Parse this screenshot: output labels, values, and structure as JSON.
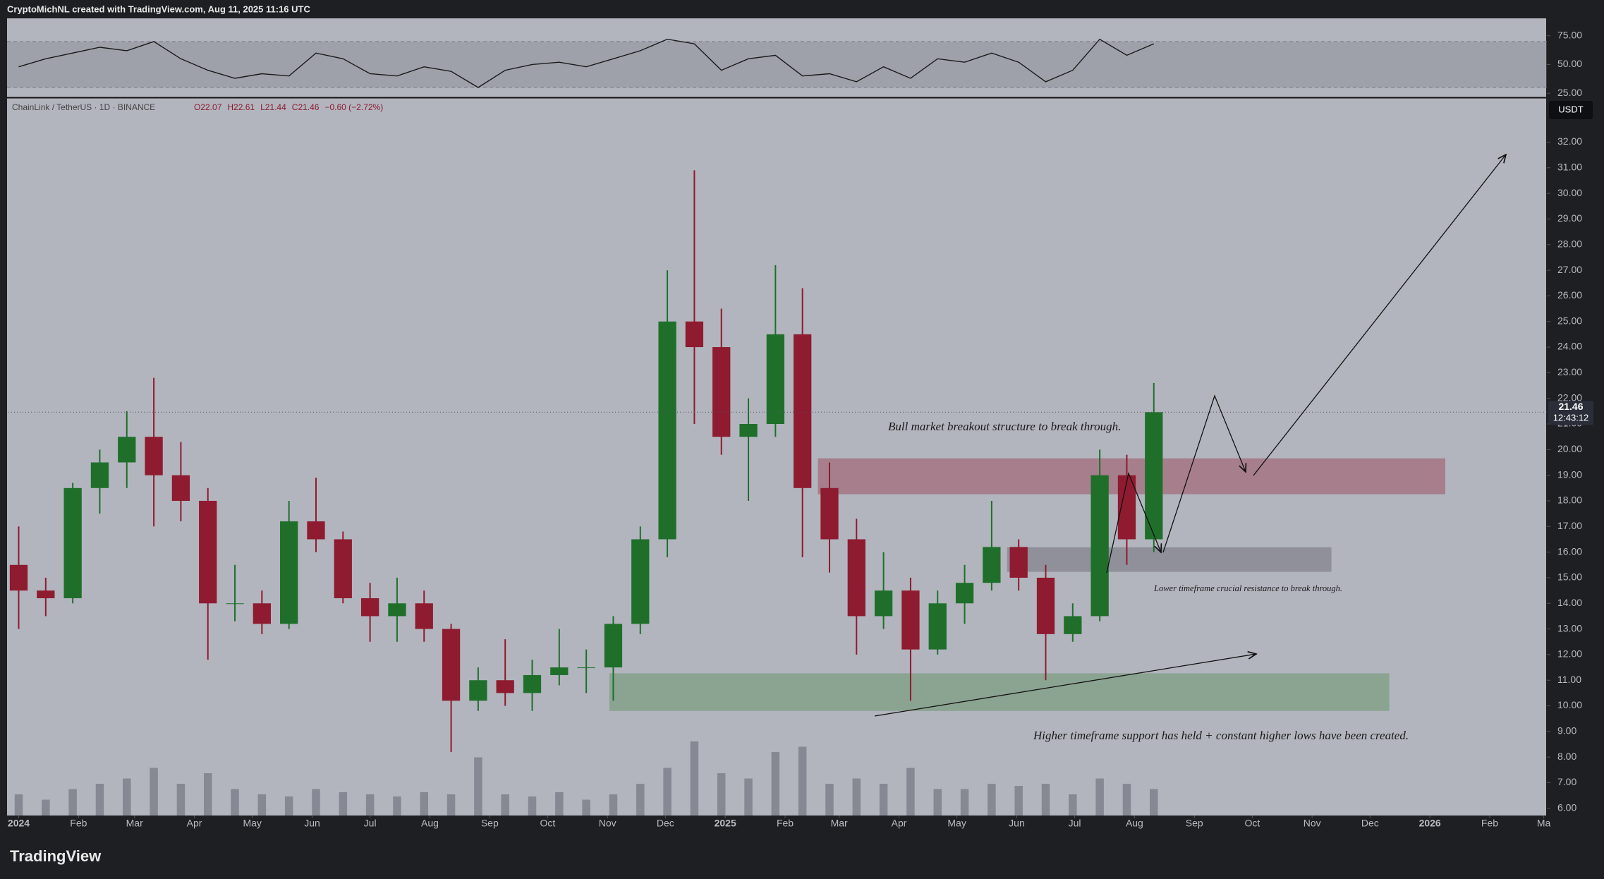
{
  "header": "CryptoMichNL created with TradingView.com, Aug 11, 2025 11:16 UTC",
  "footer": "TradingView",
  "chart_data": {
    "type": "candlestick",
    "legend": {
      "symbol": "ChainLink / TetherUS · 1D · BINANCE",
      "values": [
        "O22.07",
        "H22.61",
        "L21.44",
        "C21.46",
        "−0.60 (−2.72%)"
      ]
    },
    "currency": "USDT",
    "price_label": {
      "value": 21.46,
      "label": "21.46"
    },
    "countdown": "12:43:12",
    "x": [
      0,
      14,
      28,
      42,
      56,
      70,
      84,
      98,
      112,
      126,
      140,
      154,
      168,
      182,
      196,
      210,
      224,
      238,
      252,
      266,
      280,
      294,
      308,
      322,
      336,
      350,
      364,
      378,
      392,
      406,
      420,
      434,
      448,
      462,
      476,
      490,
      504,
      518,
      532,
      546,
      560,
      574,
      588
    ],
    "open": [
      15.5,
      14.5,
      14.2,
      18.5,
      19.5,
      20.5,
      19,
      18,
      14,
      14,
      13.2,
      17.2,
      16.5,
      14.2,
      13.5,
      14,
      13,
      10.2,
      11,
      10.5,
      11.2,
      11.5,
      11.5,
      13.2,
      16.5,
      25,
      24,
      20.5,
      21,
      24.5,
      18.5,
      16.5,
      13.5,
      14.5,
      12.2,
      14,
      14.8,
      16.2,
      15,
      12.8,
      13.5,
      19,
      16.5
    ],
    "high": [
      17,
      15,
      18.7,
      20,
      21.5,
      22.8,
      20.3,
      18.5,
      15.5,
      14.5,
      18,
      18.9,
      16.8,
      14.8,
      15,
      14.5,
      13.2,
      11.5,
      12.6,
      11.8,
      13,
      12.2,
      13.5,
      17,
      27,
      30.9,
      25.5,
      22,
      27.2,
      26.3,
      19.5,
      17.3,
      16,
      15,
      14.5,
      15.5,
      18,
      16.5,
      15.5,
      14,
      20,
      19.8,
      22.6
    ],
    "low": [
      13,
      13.5,
      14,
      17.5,
      18.5,
      17,
      17.2,
      11.8,
      13.3,
      12.8,
      13,
      16,
      14,
      12.5,
      12.5,
      12.5,
      8.2,
      9.8,
      10,
      9.8,
      10.8,
      10.5,
      10.2,
      12.8,
      15.8,
      21,
      19.8,
      18,
      20.5,
      15.8,
      15.2,
      12,
      13,
      10.2,
      12,
      13.2,
      14.5,
      14.5,
      11,
      12.5,
      13.3,
      15.5,
      16
    ],
    "close": [
      14.5,
      14.2,
      18.5,
      19.5,
      20.5,
      19,
      18,
      14,
      14,
      13.2,
      17.2,
      16.5,
      14.2,
      13.5,
      14,
      13,
      10.2,
      11,
      10.5,
      11.2,
      11.5,
      11.5,
      13.2,
      16.5,
      25,
      24,
      20.5,
      21,
      24.5,
      18.5,
      16.5,
      13.5,
      14.5,
      12.2,
      14,
      14.8,
      16.2,
      15,
      12.8,
      13.5,
      19,
      16.5,
      21.46
    ],
    "up_color": "#1f6f2b",
    "down_color": "#8e1b2f",
    "volume": {
      "values": [
        20,
        15,
        25,
        30,
        35,
        45,
        30,
        40,
        25,
        20,
        18,
        25,
        22,
        20,
        18,
        22,
        20,
        55,
        20,
        18,
        22,
        15,
        20,
        30,
        45,
        70,
        40,
        35,
        60,
        65,
        30,
        35,
        30,
        45,
        25,
        25,
        30,
        28,
        30,
        20,
        35,
        30,
        25
      ],
      "color": "#868993"
    },
    "xlim": [
      -5.3,
      791.6
    ],
    "xticks": [
      {
        "value": 0,
        "label": "2024"
      },
      {
        "value": 31,
        "label": "Feb"
      },
      {
        "value": 60,
        "label": "Mar"
      },
      {
        "value": 91,
        "label": "Apr"
      },
      {
        "value": 121,
        "label": "May"
      },
      {
        "value": 152,
        "label": "Jun"
      },
      {
        "value": 182,
        "label": "Jul"
      },
      {
        "value": 213,
        "label": "Aug"
      },
      {
        "value": 244,
        "label": "Sep"
      },
      {
        "value": 274,
        "label": "Oct"
      },
      {
        "value": 305,
        "label": "Nov"
      },
      {
        "value": 335,
        "label": "Dec"
      },
      {
        "value": 366,
        "label": "2025"
      },
      {
        "value": 397,
        "label": "Feb"
      },
      {
        "value": 425,
        "label": "Mar"
      },
      {
        "value": 456,
        "label": "Apr"
      },
      {
        "value": 486,
        "label": "May"
      },
      {
        "value": 517,
        "label": "Jun"
      },
      {
        "value": 547,
        "label": "Jul"
      },
      {
        "value": 578,
        "label": "Aug"
      },
      {
        "value": 609,
        "label": "Sep"
      },
      {
        "value": 639,
        "label": "Oct"
      },
      {
        "value": 670,
        "label": "Nov"
      },
      {
        "value": 700,
        "label": "Dec"
      },
      {
        "value": 731,
        "label": "2026"
      },
      {
        "value": 762,
        "label": "Feb"
      },
      {
        "value": 790,
        "label": "Ma"
      }
    ],
    "ylim": [
      5.72,
      33.72
    ],
    "yticks": [
      {
        "value": 6,
        "label": "6.00"
      },
      {
        "value": 7,
        "label": "7.00"
      },
      {
        "value": 8,
        "label": "8.00"
      },
      {
        "value": 9,
        "label": "9.00"
      },
      {
        "value": 10,
        "label": "10.00"
      },
      {
        "value": 11,
        "label": "11.00"
      },
      {
        "value": 12,
        "label": "12.00"
      },
      {
        "value": 13,
        "label": "13.00"
      },
      {
        "value": 14,
        "label": "14.00"
      },
      {
        "value": 15,
        "label": "15.00"
      },
      {
        "value": 16,
        "label": "16.00"
      },
      {
        "value": 17,
        "label": "17.00"
      },
      {
        "value": 18,
        "label": "18.00"
      },
      {
        "value": 19,
        "label": "19.00"
      },
      {
        "value": 20,
        "label": "20.00"
      },
      {
        "value": 21,
        "label": "21.00"
      },
      {
        "value": 22,
        "label": "22.00"
      },
      {
        "value": 23,
        "label": "23.00"
      },
      {
        "value": 24,
        "label": "24.00"
      },
      {
        "value": 25,
        "label": "25.00"
      },
      {
        "value": 26,
        "label": "26.00"
      },
      {
        "value": 27,
        "label": "27.00"
      },
      {
        "value": 28,
        "label": "28.00"
      },
      {
        "value": 29,
        "label": "29.00"
      },
      {
        "value": 30,
        "label": "30.00"
      },
      {
        "value": 31,
        "label": "31.00"
      },
      {
        "value": 32,
        "label": "32.00"
      }
    ],
    "zones": [
      {
        "x": [
          414,
          739
        ],
        "y": [
          18.26,
          19.66
        ],
        "color": "rgba(150,60,80,0.45)"
      },
      {
        "x": [
          512,
          680
        ],
        "y": [
          15.23,
          16.19
        ],
        "color": "rgba(100,100,110,0.45)"
      },
      {
        "x": [
          306,
          710
        ],
        "y": [
          9.8,
          11.27
        ],
        "color": "rgba(80,140,80,0.4)"
      }
    ],
    "annotations": [
      "Bull market breakout structure to break through.",
      "Lower timeframe crucial resistance to break through.",
      "Higher timeframe support has held + constant higher lows have been created."
    ],
    "rsi": {
      "values": [
        48,
        55,
        60,
        65,
        62,
        70,
        55,
        45,
        38,
        42,
        40,
        60,
        55,
        42,
        40,
        48,
        44,
        30,
        45,
        50,
        52,
        48,
        55,
        62,
        72,
        68,
        45,
        55,
        58,
        40,
        42,
        35,
        48,
        38,
        55,
        52,
        60,
        52,
        35,
        45,
        72,
        58,
        68
      ],
      "ylim": [
        21.4,
        90.2
      ],
      "yticks": [
        {
          "value": 25,
          "label": "25.00"
        },
        {
          "value": 50,
          "label": "50.00"
        },
        {
          "value": 75,
          "label": "75.00"
        }
      ],
      "band": [
        30,
        70
      ],
      "color": "#1a1a1a"
    }
  }
}
